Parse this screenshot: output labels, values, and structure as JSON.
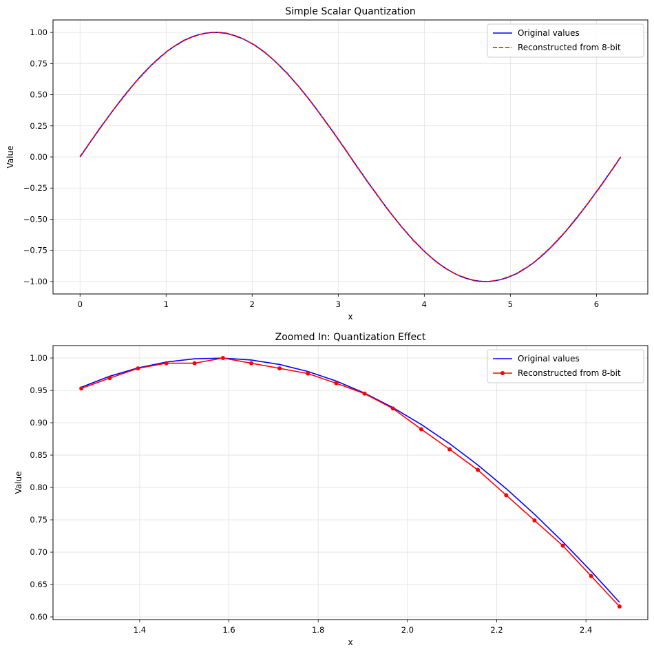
{
  "chart_data": [
    {
      "type": "line",
      "title": "Simple Scalar Quantization",
      "xlabel": "x",
      "ylabel": "Value",
      "xlim": [
        -0.314,
        6.597
      ],
      "ylim": [
        -1.1,
        1.1
      ],
      "xticks": [
        0,
        1,
        2,
        3,
        4,
        5,
        6
      ],
      "xtick_labels": [
        "0",
        "1",
        "2",
        "3",
        "4",
        "5",
        "6"
      ],
      "yticks": [
        -1.0,
        -0.75,
        -0.5,
        -0.25,
        0.0,
        0.25,
        0.5,
        0.75,
        1.0
      ],
      "ytick_labels": [
        "−1.00",
        "−0.75",
        "−0.50",
        "−0.25",
        "0.00",
        "0.25",
        "0.50",
        "0.75",
        "1.00"
      ],
      "grid": true,
      "legend_position": "top-right",
      "x_domain": [
        0,
        6.2832
      ],
      "n_points": 100,
      "function": "sin(x)",
      "series": [
        {
          "name": "Original values",
          "color": "#0000ff",
          "style": "solid"
        },
        {
          "name": "Reconstructed from 8-bit",
          "color": "#ff0000",
          "style": "dashed"
        }
      ]
    },
    {
      "type": "line",
      "title": "Zoomed In: Quantization Effect",
      "xlabel": "x",
      "ylabel": "Value",
      "xlim": [
        1.2058,
        2.5386
      ],
      "ylim": [
        0.5958,
        1.0192
      ],
      "xticks": [
        1.4,
        1.6,
        1.8,
        2.0,
        2.2,
        2.4
      ],
      "xtick_labels": [
        "1.4",
        "1.6",
        "1.8",
        "2.0",
        "2.2",
        "2.4"
      ],
      "yticks": [
        0.6,
        0.65,
        0.7,
        0.75,
        0.8,
        0.85,
        0.9,
        0.95,
        1.0
      ],
      "ytick_labels": [
        "0.60",
        "0.65",
        "0.70",
        "0.75",
        "0.80",
        "0.85",
        "0.90",
        "0.95",
        "1.00"
      ],
      "grid": true,
      "legend_position": "top-right",
      "x": [
        1.2693,
        1.3327,
        1.3962,
        1.4597,
        1.5231,
        1.5866,
        1.6501,
        1.7135,
        1.777,
        1.8405,
        1.9039,
        1.9674,
        2.0309,
        2.0944,
        2.1578,
        2.2213,
        2.2848,
        2.3482,
        2.4117,
        2.4752
      ],
      "series": [
        {
          "name": "Original values",
          "color": "#0000ff",
          "style": "solid",
          "markers": false,
          "values": [
            0.9549,
            0.9718,
            0.9848,
            0.9938,
            0.9988,
            0.9999,
            0.9969,
            0.99,
            0.9792,
            0.9644,
            0.9458,
            0.9234,
            0.8973,
            0.8677,
            0.8346,
            0.7981,
            0.7585,
            0.7159,
            0.6705,
            0.6224
          ]
        },
        {
          "name": "Reconstructed from 8-bit",
          "color": "#ff0000",
          "style": "solid",
          "markers": true,
          "values": [
            0.953,
            0.969,
            0.984,
            0.992,
            0.992,
            1.0,
            0.992,
            0.984,
            0.976,
            0.961,
            0.945,
            0.922,
            0.89,
            0.859,
            0.827,
            0.788,
            0.749,
            0.71,
            0.663,
            0.616
          ]
        }
      ]
    }
  ]
}
